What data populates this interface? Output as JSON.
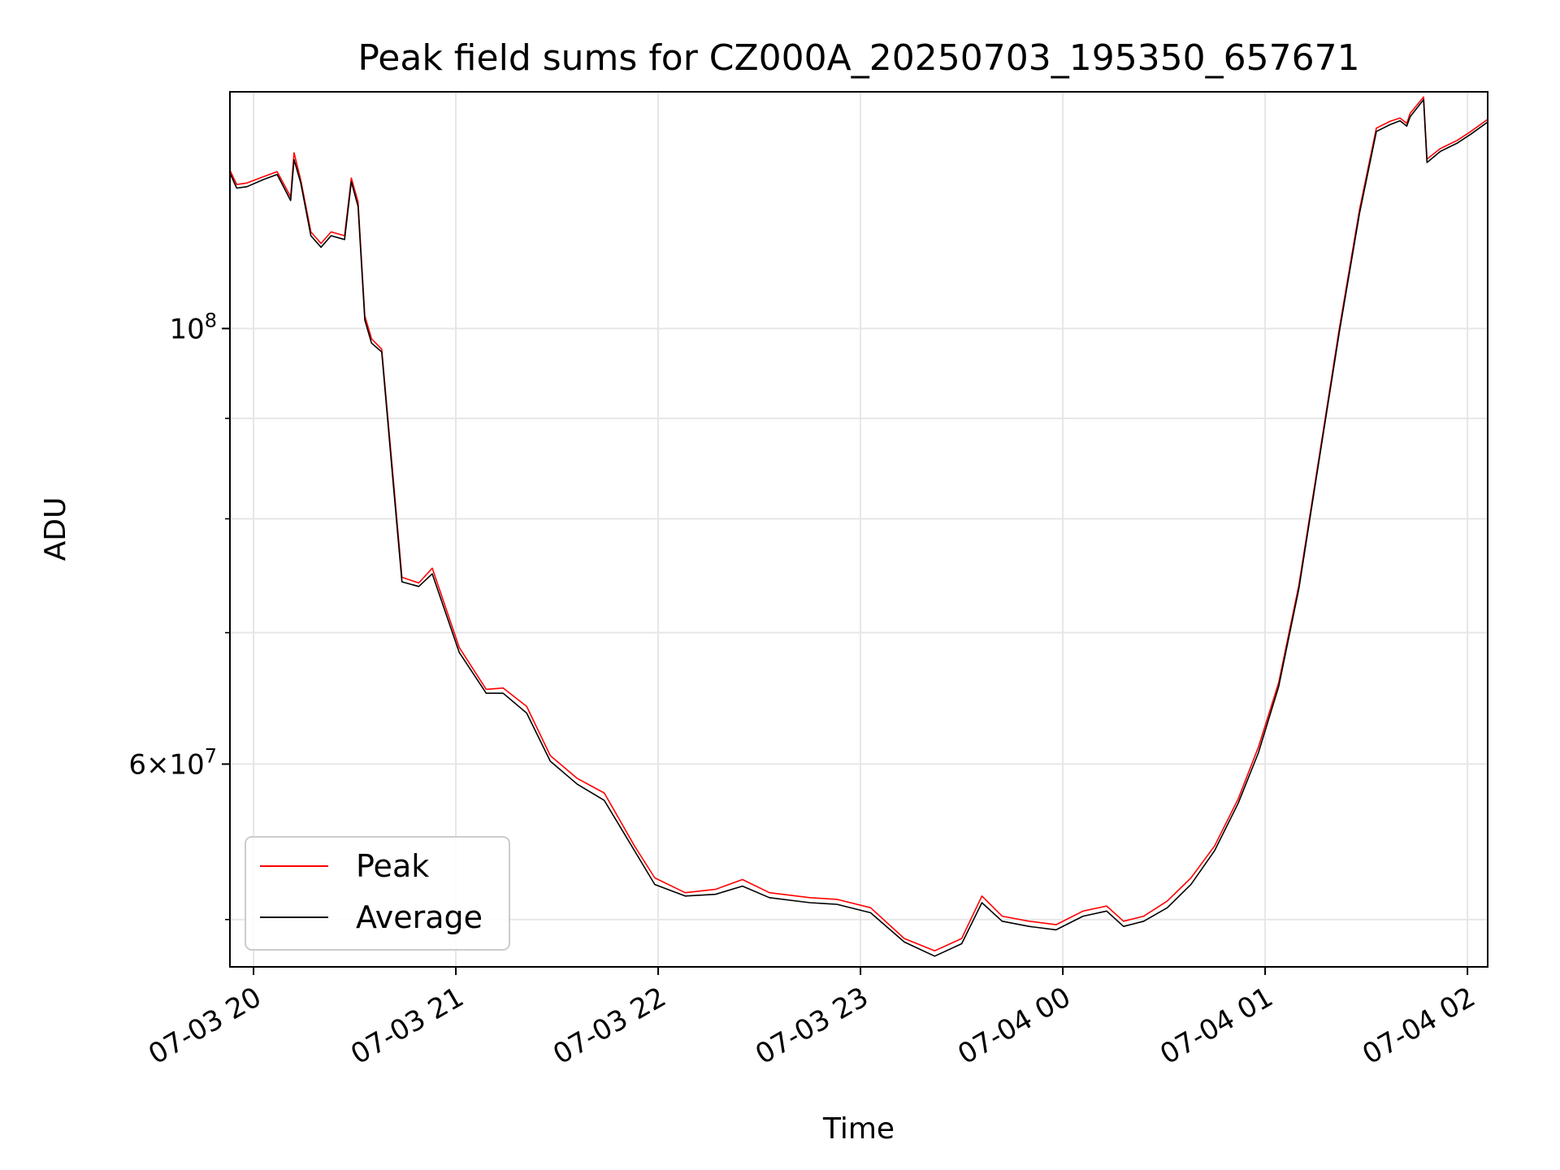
{
  "chart_data": {
    "type": "line",
    "title": "Peak field sums for CZ000A_20250703_195350_657671",
    "xlabel": "Time",
    "ylabel": "ADU",
    "y_scale": "log",
    "grid": true,
    "legend_position": "lower-left",
    "xlim": [
      "2025-07-03 19:53",
      "2025-07-04 02:06"
    ],
    "ylim": [
      47300000,
      132000000
    ],
    "x_ticks": [
      {
        "value": "2025-07-03 20:00",
        "label": "07-03 20"
      },
      {
        "value": "2025-07-03 21:00",
        "label": "07-03 21"
      },
      {
        "value": "2025-07-03 22:00",
        "label": "07-03 22"
      },
      {
        "value": "2025-07-03 23:00",
        "label": "07-03 23"
      },
      {
        "value": "2025-07-04 00:00",
        "label": "07-04 00"
      },
      {
        "value": "2025-07-04 01:00",
        "label": "07-04 01"
      },
      {
        "value": "2025-07-04 02:00",
        "label": "07-04 02"
      }
    ],
    "y_major_ticks": [
      {
        "value": 100000000,
        "base": "10",
        "exp": "8"
      },
      {
        "value": 60000000,
        "mantissa": "6",
        "base": "10",
        "exp": "7"
      }
    ],
    "y_minor_ticks": [
      50000000,
      70000000,
      80000000,
      90000000
    ],
    "series": [
      {
        "name": "Peak",
        "color": "#ff0000",
        "points": [
          [
            "2025-07-03 19:53",
            120400000
          ],
          [
            "2025-07-03 19:55",
            118400000
          ],
          [
            "2025-07-03 19:58",
            118600000
          ],
          [
            "2025-07-03 20:03",
            119500000
          ],
          [
            "2025-07-03 20:07",
            120200000
          ],
          [
            "2025-07-03 20:11",
            116700000
          ],
          [
            "2025-07-03 20:12",
            122900000
          ],
          [
            "2025-07-03 20:14",
            119000000
          ],
          [
            "2025-07-03 20:17",
            112000000
          ],
          [
            "2025-07-03 20:20",
            110500000
          ],
          [
            "2025-07-03 20:23",
            112000000
          ],
          [
            "2025-07-03 20:27",
            111500000
          ],
          [
            "2025-07-03 20:29",
            119300000
          ],
          [
            "2025-07-03 20:31",
            116000000
          ],
          [
            "2025-07-03 20:33",
            101500000
          ],
          [
            "2025-07-03 20:35",
            98800000
          ],
          [
            "2025-07-03 20:38",
            97600000
          ],
          [
            "2025-07-03 20:41",
            85500000
          ],
          [
            "2025-07-03 20:44",
            74700000
          ],
          [
            "2025-07-03 20:49",
            74200000
          ],
          [
            "2025-07-03 20:53",
            75500000
          ],
          [
            "2025-07-03 21:01",
            68800000
          ],
          [
            "2025-07-03 21:09",
            65500000
          ],
          [
            "2025-07-03 21:14",
            65600000
          ],
          [
            "2025-07-03 21:21",
            64200000
          ],
          [
            "2025-07-03 21:28",
            60600000
          ],
          [
            "2025-07-03 21:36",
            59000000
          ],
          [
            "2025-07-03 21:44",
            58000000
          ],
          [
            "2025-07-03 21:53",
            54500000
          ],
          [
            "2025-07-03 21:59",
            52500000
          ],
          [
            "2025-07-03 22:08",
            51600000
          ],
          [
            "2025-07-03 22:17",
            51800000
          ],
          [
            "2025-07-03 22:25",
            52400000
          ],
          [
            "2025-07-03 22:33",
            51600000
          ],
          [
            "2025-07-03 22:45",
            51300000
          ],
          [
            "2025-07-03 22:53",
            51200000
          ],
          [
            "2025-07-03 23:03",
            50700000
          ],
          [
            "2025-07-03 23:13",
            48900000
          ],
          [
            "2025-07-03 23:22",
            48200000
          ],
          [
            "2025-07-03 23:30",
            48900000
          ],
          [
            "2025-07-03 23:36",
            51400000
          ],
          [
            "2025-07-03 23:42",
            50200000
          ],
          [
            "2025-07-03 23:50",
            49900000
          ],
          [
            "2025-07-03 23:58",
            49700000
          ],
          [
            "2025-07-04 00:06",
            50500000
          ],
          [
            "2025-07-04 00:13",
            50800000
          ],
          [
            "2025-07-04 00:18",
            49900000
          ],
          [
            "2025-07-04 00:24",
            50200000
          ],
          [
            "2025-07-04 00:31",
            51100000
          ],
          [
            "2025-07-04 00:38",
            52500000
          ],
          [
            "2025-07-04 00:45",
            54500000
          ],
          [
            "2025-07-04 00:52",
            57600000
          ],
          [
            "2025-07-04 00:58",
            61200000
          ],
          [
            "2025-07-04 01:04",
            66000000
          ],
          [
            "2025-07-04 01:10",
            74000000
          ],
          [
            "2025-07-04 01:16",
            86000000
          ],
          [
            "2025-07-04 01:22",
            100000000
          ],
          [
            "2025-07-04 01:28",
            115000000
          ],
          [
            "2025-07-04 01:33",
            126500000
          ],
          [
            "2025-07-04 01:37",
            127500000
          ],
          [
            "2025-07-04 01:40",
            128000000
          ],
          [
            "2025-07-04 01:42",
            127200000
          ],
          [
            "2025-07-04 01:43",
            128700000
          ],
          [
            "2025-07-04 01:47",
            131200000
          ],
          [
            "2025-07-04 01:48",
            122000000
          ],
          [
            "2025-07-04 01:52",
            123500000
          ],
          [
            "2025-07-04 01:57",
            124700000
          ],
          [
            "2025-07-04 02:01",
            126000000
          ],
          [
            "2025-07-04 02:06",
            127800000
          ]
        ]
      },
      {
        "name": "Average",
        "color": "#000000",
        "points": [
          [
            "2025-07-03 19:53",
            120000000
          ],
          [
            "2025-07-03 19:55",
            117900000
          ],
          [
            "2025-07-03 19:58",
            118100000
          ],
          [
            "2025-07-03 20:03",
            119100000
          ],
          [
            "2025-07-03 20:07",
            119800000
          ],
          [
            "2025-07-03 20:11",
            116200000
          ],
          [
            "2025-07-03 20:12",
            121900000
          ],
          [
            "2025-07-03 20:14",
            118600000
          ],
          [
            "2025-07-03 20:17",
            111500000
          ],
          [
            "2025-07-03 20:20",
            110000000
          ],
          [
            "2025-07-03 20:23",
            111500000
          ],
          [
            "2025-07-03 20:27",
            111000000
          ],
          [
            "2025-07-03 20:29",
            118800000
          ],
          [
            "2025-07-03 20:31",
            115400000
          ],
          [
            "2025-07-03 20:33",
            101000000
          ],
          [
            "2025-07-03 20:35",
            98300000
          ],
          [
            "2025-07-03 20:38",
            97300000
          ],
          [
            "2025-07-03 20:41",
            85000000
          ],
          [
            "2025-07-03 20:44",
            74300000
          ],
          [
            "2025-07-03 20:49",
            73900000
          ],
          [
            "2025-07-03 20:53",
            75000000
          ],
          [
            "2025-07-03 21:01",
            68400000
          ],
          [
            "2025-07-03 21:09",
            65200000
          ],
          [
            "2025-07-03 21:14",
            65200000
          ],
          [
            "2025-07-03 21:21",
            63700000
          ],
          [
            "2025-07-03 21:28",
            60200000
          ],
          [
            "2025-07-03 21:36",
            58600000
          ],
          [
            "2025-07-03 21:44",
            57500000
          ],
          [
            "2025-07-03 21:53",
            54200000
          ],
          [
            "2025-07-03 21:59",
            52100000
          ],
          [
            "2025-07-03 22:08",
            51400000
          ],
          [
            "2025-07-03 22:17",
            51500000
          ],
          [
            "2025-07-03 22:25",
            52000000
          ],
          [
            "2025-07-03 22:33",
            51300000
          ],
          [
            "2025-07-03 22:45",
            51000000
          ],
          [
            "2025-07-03 22:53",
            50900000
          ],
          [
            "2025-07-03 23:03",
            50400000
          ],
          [
            "2025-07-03 23:13",
            48700000
          ],
          [
            "2025-07-03 23:22",
            47900000
          ],
          [
            "2025-07-03 23:30",
            48600000
          ],
          [
            "2025-07-03 23:36",
            51000000
          ],
          [
            "2025-07-03 23:42",
            49900000
          ],
          [
            "2025-07-03 23:50",
            49600000
          ],
          [
            "2025-07-03 23:58",
            49400000
          ],
          [
            "2025-07-04 00:06",
            50200000
          ],
          [
            "2025-07-04 00:13",
            50500000
          ],
          [
            "2025-07-04 00:18",
            49600000
          ],
          [
            "2025-07-04 00:24",
            49900000
          ],
          [
            "2025-07-04 00:31",
            50700000
          ],
          [
            "2025-07-04 00:38",
            52100000
          ],
          [
            "2025-07-04 00:45",
            54200000
          ],
          [
            "2025-07-04 00:52",
            57300000
          ],
          [
            "2025-07-04 00:58",
            60800000
          ],
          [
            "2025-07-04 01:04",
            65700000
          ],
          [
            "2025-07-04 01:10",
            73700000
          ],
          [
            "2025-07-04 01:16",
            85700000
          ],
          [
            "2025-07-04 01:22",
            99600000
          ],
          [
            "2025-07-04 01:28",
            114500000
          ],
          [
            "2025-07-04 01:33",
            126000000
          ],
          [
            "2025-07-04 01:37",
            127000000
          ],
          [
            "2025-07-04 01:40",
            127600000
          ],
          [
            "2025-07-04 01:42",
            126800000
          ],
          [
            "2025-07-04 01:43",
            128200000
          ],
          [
            "2025-07-04 01:47",
            130800000
          ],
          [
            "2025-07-04 01:48",
            121500000
          ],
          [
            "2025-07-04 01:52",
            123100000
          ],
          [
            "2025-07-04 01:57",
            124300000
          ],
          [
            "2025-07-04 02:01",
            125600000
          ],
          [
            "2025-07-04 02:06",
            127400000
          ]
        ]
      }
    ]
  }
}
